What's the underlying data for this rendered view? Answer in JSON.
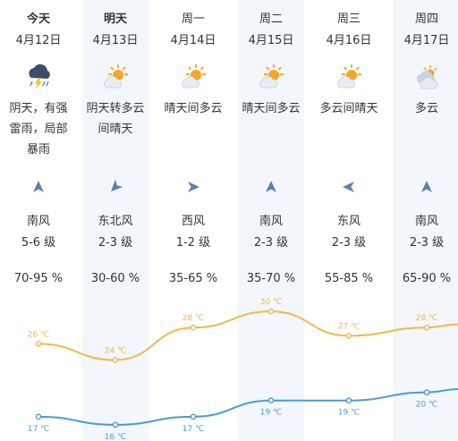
{
  "days": [
    {
      "day": "今天",
      "date": "4月12日",
      "desc": [
        "阴天，有强",
        "雷雨，局部",
        "暴雨"
      ],
      "icon": "thunderstorm-icon",
      "wind_dir": "南风",
      "wind_level": "5-6 级",
      "humidity": "70-95 %",
      "high": "26 ℃",
      "low": "17 ℃",
      "bold": true
    },
    {
      "day": "明天",
      "date": "4月13日",
      "desc": [
        "阴天转多云",
        "间晴天"
      ],
      "icon": "partly-sunny-icon",
      "wind_dir": "东北风",
      "wind_level": "2-3 级",
      "humidity": "30-60 %",
      "high": "24 ℃",
      "low": "16 ℃",
      "bold": true
    },
    {
      "day": "周一",
      "date": "4月14日",
      "desc": [
        "晴天间多云"
      ],
      "icon": "partly-sunny-icon",
      "wind_dir": "西风",
      "wind_level": "1-2 级",
      "humidity": "35-65 %",
      "high": "28 ℃",
      "low": "17 ℃",
      "bold": false
    },
    {
      "day": "周二",
      "date": "4月15日",
      "desc": [
        "晴天间多云"
      ],
      "icon": "partly-sunny-icon",
      "wind_dir": "南风",
      "wind_level": "2-3 级",
      "humidity": "35-70 %",
      "high": "30 ℃",
      "low": "19 ℃",
      "bold": false
    },
    {
      "day": "周三",
      "date": "4月16日",
      "desc": [
        "多云间晴天"
      ],
      "icon": "partly-sunny-icon",
      "wind_dir": "东风",
      "wind_level": "2-3 级",
      "humidity": "55-85 %",
      "high": "27 ℃",
      "low": "19 ℃",
      "bold": false
    },
    {
      "day": "周四",
      "date": "4月17日",
      "desc": [
        "多云"
      ],
      "icon": "cloudy-icon",
      "wind_dir": "南风",
      "wind_level": "2-3 级",
      "humidity": "65-90 %",
      "high": "28 ℃",
      "low": "20 ℃",
      "bold": false
    }
  ],
  "colors": {
    "high_line": "#f2b84b",
    "low_line": "#4d9ad4",
    "shade": "#f3f6fb",
    "arrow": "#5a82b0"
  },
  "chart_data": {
    "type": "line",
    "x": [
      "4月12日",
      "4月13日",
      "4月14日",
      "4月15日",
      "4月16日",
      "4月17日"
    ],
    "series": [
      {
        "values": [
          26,
          24,
          28,
          30,
          27,
          28
        ]
      },
      {
        "values": [
          17,
          16,
          17,
          19,
          19,
          20
        ]
      }
    ],
    "ylim": [
      14,
      32
    ]
  }
}
